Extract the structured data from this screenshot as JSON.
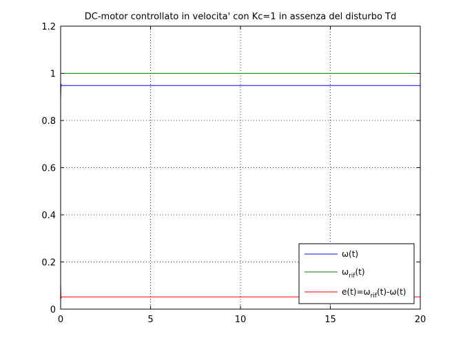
{
  "chart_data": {
    "type": "line",
    "title": "DC-motor controllato in velocita' con Kc=1 in assenza del disturbo Td",
    "xlabel": "",
    "ylabel": "",
    "xlim": [
      0,
      20
    ],
    "ylim": [
      0,
      1.2
    ],
    "xticks": [
      0,
      5,
      10,
      15,
      20
    ],
    "xtick_labels": [
      "0",
      "5",
      "10",
      "15",
      "20"
    ],
    "yticks": [
      0,
      0.2,
      0.4,
      0.6,
      0.8,
      1.0,
      1.2
    ],
    "ytick_labels": [
      "0",
      "0.2",
      "0.4",
      "0.6",
      "0.8",
      "1",
      "1.2"
    ],
    "grid": true,
    "grid_style": "dotted",
    "legend_position": "bottom-right",
    "series": [
      {
        "name": "ω(t)",
        "legend_parts": [
          {
            "text": "ω(t)"
          }
        ],
        "color": "#0000ff",
        "x": [
          0,
          0.02,
          0.05,
          0.1,
          20
        ],
        "y": [
          0.89,
          0.955,
          0.948,
          0.948,
          0.948
        ]
      },
      {
        "name": "ωrif(t)",
        "legend_parts": [
          {
            "text": "ω"
          },
          {
            "text": "rif",
            "sub": true
          },
          {
            "text": "(t)"
          }
        ],
        "color": "#008000",
        "x": [
          0,
          20
        ],
        "y": [
          1.0,
          1.0
        ]
      },
      {
        "name": "e(t)=ωrif(t)-ω(t)",
        "legend_parts": [
          {
            "text": "e(t)=ω"
          },
          {
            "text": "rif",
            "sub": true
          },
          {
            "text": "(t)-ω(t)"
          }
        ],
        "color": "#ff0000",
        "x": [
          0,
          0.02,
          0.05,
          0.1,
          20
        ],
        "y": [
          0.11,
          0.045,
          0.052,
          0.052,
          0.052
        ]
      }
    ]
  }
}
